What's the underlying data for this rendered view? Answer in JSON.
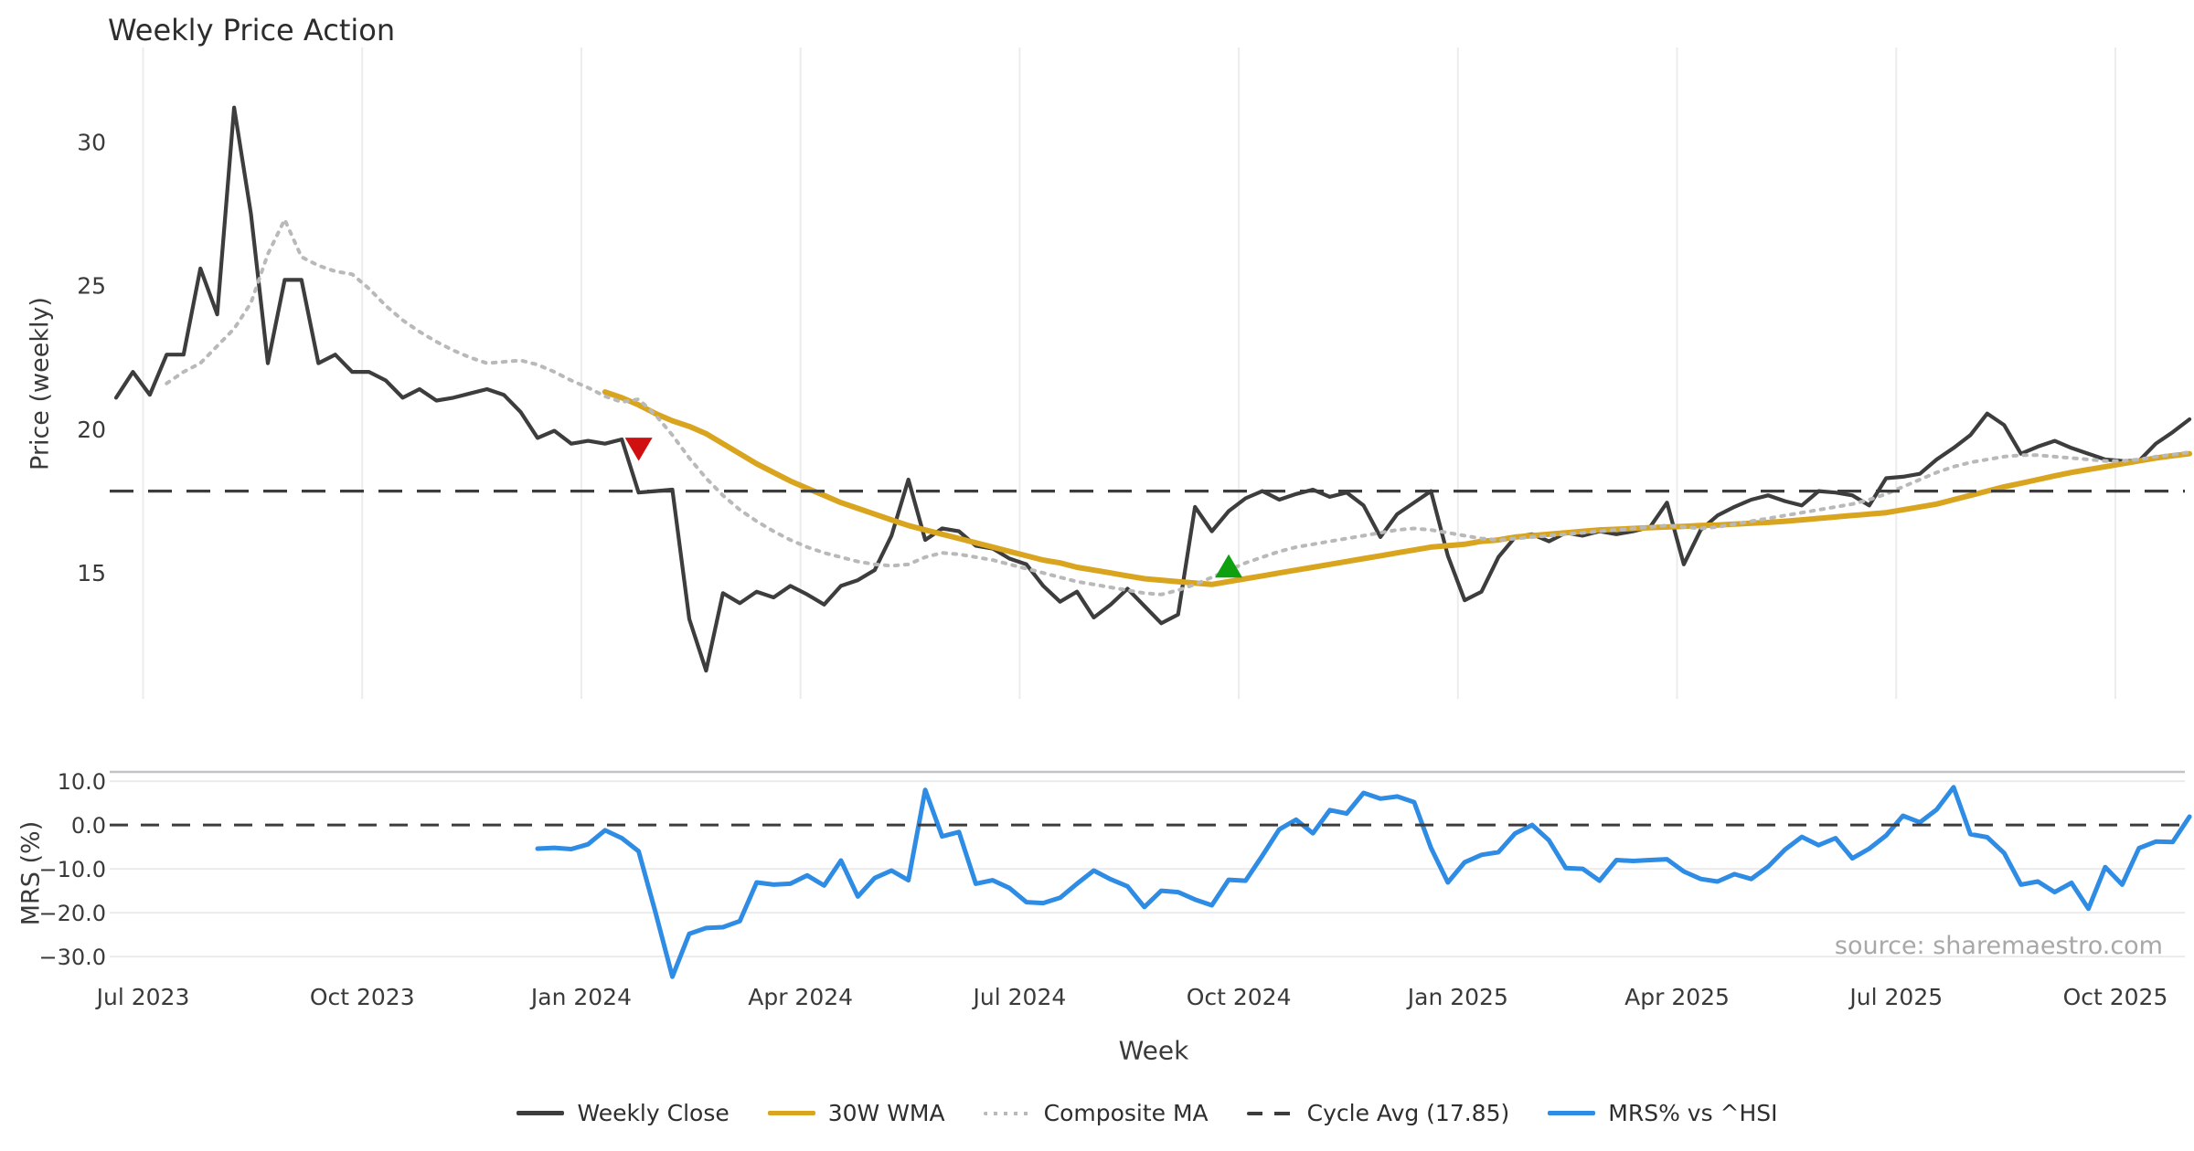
{
  "header": {
    "title": "Weekly Price Action"
  },
  "source_note": "source: sharemaestro.com",
  "axes": {
    "x_label": "Week",
    "price_axis_label": "Price (weekly)",
    "mrs_axis_label": "MRS (%)"
  },
  "legend": {
    "items": [
      {
        "label": "Weekly Close",
        "style": "solid",
        "color": "#3d3d3d"
      },
      {
        "label": "30W WMA",
        "style": "solid",
        "color": "#d9a41e"
      },
      {
        "label": "Composite MA",
        "style": "dotted",
        "color": "#b9b9b9"
      },
      {
        "label": "Cycle Avg (17.85)",
        "style": "dashed",
        "color": "#3c3c3c"
      },
      {
        "label": "MRS% vs ^HSI",
        "style": "solid",
        "color": "#2e8ce4"
      }
    ]
  },
  "chart_data": {
    "type": "line",
    "title": "Weekly Price Action",
    "x_axis": {
      "label": "Week",
      "unit": "weeks since first data point",
      "tick_labels": [
        "Jul 2023",
        "Oct 2023",
        "Jan 2024",
        "Apr 2024",
        "Jul 2024",
        "Oct 2024",
        "Jan 2025",
        "Apr 2025",
        "Jul 2025",
        "Oct 2025"
      ],
      "tick_weeks": [
        1.6,
        14.6,
        27.6,
        40.6,
        53.6,
        66.6,
        79.6,
        92.6,
        105.6,
        118.6
      ],
      "grid": true
    },
    "panels": [
      {
        "id": "price",
        "ylabel": "Price (weekly)",
        "ylim": [
          10.62,
          33.29
        ],
        "yticks": [
          15,
          20,
          25,
          30
        ],
        "tick_format": "int",
        "grid": "vertical",
        "series": [
          {
            "name": "Weekly Close",
            "color": "#3d3d3d",
            "width": 4.2,
            "dash": "",
            "start_week": 0,
            "values": [
              21.1,
              22.0,
              21.2,
              22.6,
              22.6,
              25.6,
              24.0,
              31.2,
              27.5,
              22.3,
              25.2,
              25.2,
              22.3,
              22.6,
              22.0,
              22.0,
              21.7,
              21.1,
              21.4,
              21.0,
              21.1,
              21.25,
              21.4,
              21.2,
              20.6,
              19.7,
              19.95,
              19.5,
              19.6,
              19.5,
              19.65,
              17.8,
              17.85,
              17.9,
              13.4,
              11.6,
              14.3,
              13.95,
              14.35,
              14.15,
              14.55,
              14.25,
              13.9,
              14.55,
              14.75,
              15.1,
              16.3,
              18.25,
              16.15,
              16.55,
              16.45,
              15.95,
              15.85,
              15.5,
              15.3,
              14.55,
              14.0,
              14.35,
              13.45,
              13.9,
              14.45,
              13.85,
              13.25,
              13.55,
              17.3,
              16.45,
              17.15,
              17.6,
              17.85,
              17.55,
              17.75,
              17.9,
              17.65,
              17.8,
              17.35,
              16.25,
              17.05,
              17.45,
              17.85,
              15.6,
              14.05,
              14.35,
              15.55,
              16.25,
              16.35,
              16.1,
              16.4,
              16.3,
              16.45,
              16.35,
              16.45,
              16.6,
              17.45,
              15.3,
              16.5,
              17.0,
              17.3,
              17.55,
              17.7,
              17.5,
              17.35,
              17.85,
              17.8,
              17.7,
              17.35,
              18.3,
              18.35,
              18.45,
              18.95,
              19.35,
              19.8,
              20.55,
              20.15,
              19.15,
              19.4,
              19.6,
              19.35,
              19.15,
              18.95,
              18.9,
              18.9,
              19.5,
              19.9,
              20.35
            ]
          },
          {
            "name": "30W WMA",
            "color": "#d9a41e",
            "width": 6,
            "dash": "",
            "start_week": 29,
            "values": [
              21.3,
              21.1,
              20.85,
              20.55,
              20.3,
              20.1,
              19.85,
              19.5,
              19.15,
              18.8,
              18.5,
              18.2,
              17.95,
              17.7,
              17.45,
              17.25,
              17.05,
              16.85,
              16.65,
              16.5,
              16.35,
              16.2,
              16.05,
              15.9,
              15.75,
              15.6,
              15.45,
              15.35,
              15.2,
              15.1,
              15.0,
              14.9,
              14.8,
              14.75,
              14.7,
              14.65,
              14.6,
              14.7,
              14.8,
              14.9,
              15.0,
              15.1,
              15.2,
              15.3,
              15.4,
              15.5,
              15.6,
              15.7,
              15.8,
              15.9,
              15.95,
              16.0,
              16.1,
              16.15,
              16.25,
              16.3,
              16.35,
              16.4,
              16.45,
              16.5,
              16.52,
              16.55,
              16.58,
              16.6,
              16.62,
              16.65,
              16.67,
              16.7,
              16.73,
              16.76,
              16.8,
              16.85,
              16.9,
              16.95,
              17.0,
              17.05,
              17.1,
              17.2,
              17.3,
              17.4,
              17.55,
              17.7,
              17.85,
              18.0,
              18.12,
              18.25,
              18.38,
              18.5,
              18.6,
              18.7,
              18.8,
              18.9,
              19.0,
              19.08,
              19.15
            ]
          },
          {
            "name": "Composite MA",
            "color": "#b9b9b9",
            "width": 4,
            "dash": "3.5 7.5",
            "start_week": 3,
            "values": [
              21.6,
              22.0,
              22.3,
              22.9,
              23.5,
              24.4,
              26.1,
              27.3,
              26.0,
              25.7,
              25.5,
              25.4,
              24.9,
              24.3,
              23.8,
              23.4,
              23.05,
              22.75,
              22.5,
              22.3,
              22.35,
              22.4,
              22.25,
              22.0,
              21.7,
              21.45,
              21.15,
              20.95,
              21.05,
              20.5,
              19.8,
              19.0,
              18.3,
              17.7,
              17.2,
              16.8,
              16.45,
              16.15,
              15.9,
              15.7,
              15.55,
              15.4,
              15.3,
              15.25,
              15.3,
              15.55,
              15.7,
              15.65,
              15.55,
              15.45,
              15.3,
              15.15,
              15.0,
              14.85,
              14.7,
              14.6,
              14.5,
              14.4,
              14.3,
              14.25,
              14.4,
              14.6,
              14.85,
              15.1,
              15.35,
              15.55,
              15.75,
              15.9,
              16.0,
              16.1,
              16.2,
              16.3,
              16.4,
              16.5,
              16.55,
              16.5,
              16.4,
              16.3,
              16.2,
              16.15,
              16.2,
              16.25,
              16.3,
              16.35,
              16.4,
              16.45,
              16.5,
              16.55,
              16.6,
              16.65,
              16.6,
              16.55,
              16.6,
              16.7,
              16.8,
              16.9,
              17.0,
              17.1,
              17.2,
              17.3,
              17.4,
              17.55,
              17.75,
              18.0,
              18.25,
              18.5,
              18.7,
              18.85,
              18.95,
              19.05,
              19.1,
              19.1,
              19.05,
              19.0,
              18.95,
              18.9,
              18.9,
              18.95,
              19.05,
              19.12,
              19.2
            ]
          }
        ],
        "hlines": [
          {
            "name": "Cycle Avg (17.85)",
            "value": 17.85,
            "color": "#3c3c3c",
            "width": 3.2,
            "dash": "26 16"
          }
        ],
        "markers": [
          {
            "name": "sell-signal",
            "shape": "triangle-down",
            "color": "#d01010",
            "week": 31,
            "value": 19.35
          },
          {
            "name": "buy-signal",
            "shape": "triangle-up",
            "color": "#0fa00f",
            "week": 66,
            "value": 15.2
          }
        ]
      },
      {
        "id": "mrs",
        "ylabel": "MRS (%)",
        "ylim": [
          -35.8,
          12.1
        ],
        "yticks": [
          10,
          0,
          -10,
          -20,
          -30
        ],
        "tick_format": "1dp",
        "grid": "horizontal",
        "top_spine": true,
        "series": [
          {
            "name": "MRS% vs ^HSI",
            "color": "#2e8ce4",
            "width": 5,
            "dash": "",
            "start_week": 25,
            "values": [
              -5.4,
              -5.2,
              -5.5,
              -4.4,
              -1.2,
              -3.0,
              -6.0,
              -20.0,
              -34.6,
              -24.8,
              -23.5,
              -23.3,
              -21.9,
              -13.1,
              -13.6,
              -13.4,
              -11.5,
              -13.8,
              -8.1,
              -16.3,
              -12.1,
              -10.4,
              -12.6,
              8.0,
              -2.6,
              -1.6,
              -13.4,
              -12.6,
              -14.4,
              -17.6,
              -17.8,
              -16.6,
              -13.4,
              -10.4,
              -12.4,
              -14.0,
              -18.7,
              -15.0,
              -15.3,
              -17.0,
              -18.3,
              -12.5,
              -12.7,
              -7.0,
              -1.0,
              1.2,
              -1.9,
              3.4,
              2.6,
              7.3,
              6.0,
              6.5,
              5.2,
              -5.2,
              -13.1,
              -8.5,
              -6.8,
              -6.2,
              -1.9,
              0.0,
              -3.5,
              -9.8,
              -10.0,
              -12.7,
              -8.0,
              -8.2,
              -8.0,
              -7.8,
              -10.6,
              -12.3,
              -12.9,
              -11.2,
              -12.3,
              -9.5,
              -5.6,
              -2.7,
              -4.6,
              -3.0,
              -7.6,
              -5.4,
              -2.4,
              2.1,
              0.6,
              3.5,
              8.6,
              -2.1,
              -2.8,
              -6.4,
              -13.6,
              -12.9,
              -15.3,
              -13.2,
              -19.1,
              -9.6,
              -13.6,
              -5.3,
              -3.8,
              -3.9,
              1.9
            ]
          }
        ],
        "hlines": [
          {
            "name": "zero-line",
            "value": 0,
            "color": "#3c3c3c",
            "width": 3,
            "dash": "20 14"
          }
        ]
      }
    ]
  }
}
